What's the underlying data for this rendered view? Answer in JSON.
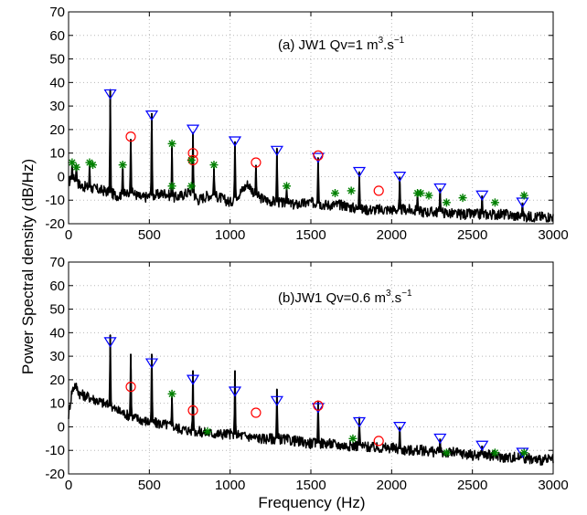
{
  "figure": {
    "ylabel": "Power Spectral density (dB/Hz)",
    "xlabel": "Frequency (Hz)"
  },
  "chart_data": [
    {
      "type": "line",
      "title": "(a) JW1 Qv=1 m³.s⁻¹",
      "title_main": "(a) JW1 Qv=1 m",
      "title_sup1": "3",
      "title_mid": ".s",
      "title_sup2": "−1",
      "xlim": [
        0,
        3000
      ],
      "ylim": [
        -20,
        70
      ],
      "xticks": [
        0,
        500,
        1000,
        1500,
        2000,
        2500,
        3000
      ],
      "yticks": [
        -20,
        -10,
        0,
        10,
        20,
        30,
        40,
        50,
        60,
        70
      ],
      "grid": true,
      "baseline": [
        [
          0,
          -2
        ],
        [
          30,
          -1
        ],
        [
          80,
          -4
        ],
        [
          150,
          -5
        ],
        [
          220,
          -6
        ],
        [
          300,
          -8
        ],
        [
          400,
          -7
        ],
        [
          450,
          -9
        ],
        [
          530,
          -8
        ],
        [
          600,
          -7
        ],
        [
          650,
          -9
        ],
        [
          700,
          -8
        ],
        [
          760,
          -6
        ],
        [
          800,
          -10
        ],
        [
          860,
          -8
        ],
        [
          900,
          -8
        ],
        [
          940,
          -9
        ],
        [
          1000,
          -11
        ],
        [
          1060,
          -7
        ],
        [
          1110,
          -3
        ],
        [
          1160,
          -8
        ],
        [
          1220,
          -10
        ],
        [
          1300,
          -11
        ],
        [
          1400,
          -12
        ],
        [
          1500,
          -11
        ],
        [
          1600,
          -12
        ],
        [
          1700,
          -12
        ],
        [
          1800,
          -14
        ],
        [
          1900,
          -14
        ],
        [
          2000,
          -14
        ],
        [
          2100,
          -14
        ],
        [
          2200,
          -15
        ],
        [
          2300,
          -15
        ],
        [
          2400,
          -16
        ],
        [
          2500,
          -16
        ],
        [
          2600,
          -16
        ],
        [
          2700,
          -16
        ],
        [
          2800,
          -17
        ],
        [
          2900,
          -17
        ],
        [
          3000,
          -17
        ]
      ],
      "peaks": [
        [
          22,
          5
        ],
        [
          48,
          5
        ],
        [
          130,
          5
        ],
        [
          258,
          37
        ],
        [
          335,
          4
        ],
        [
          385,
          16
        ],
        [
          515,
          27
        ],
        [
          640,
          13
        ],
        [
          770,
          19
        ],
        [
          900,
          4
        ],
        [
          1030,
          15
        ],
        [
          1160,
          5
        ],
        [
          1290,
          12
        ],
        [
          1350,
          -4
        ],
        [
          1545,
          8
        ],
        [
          1800,
          2
        ],
        [
          2050,
          0
        ],
        [
          2160,
          -7
        ],
        [
          2300,
          -5
        ],
        [
          2560,
          -8
        ],
        [
          2810,
          -11
        ]
      ],
      "harmonics_triangle": [
        [
          258,
          35
        ],
        [
          515,
          26
        ],
        [
          770,
          20
        ],
        [
          1030,
          15
        ],
        [
          1290,
          11
        ],
        [
          1545,
          8
        ],
        [
          1800,
          2
        ],
        [
          2050,
          0
        ],
        [
          2300,
          -5
        ],
        [
          2560,
          -8
        ],
        [
          2810,
          -11
        ]
      ],
      "markers_circle": [
        [
          385,
          17
        ],
        [
          770,
          10
        ],
        [
          770,
          7
        ],
        [
          1160,
          6
        ],
        [
          1545,
          9
        ],
        [
          1920,
          -6
        ]
      ],
      "markers_star": [
        [
          22,
          6
        ],
        [
          48,
          4
        ],
        [
          130,
          6
        ],
        [
          150,
          5
        ],
        [
          335,
          5
        ],
        [
          640,
          14
        ],
        [
          640,
          -4
        ],
        [
          760,
          7
        ],
        [
          760,
          -4
        ],
        [
          900,
          5
        ],
        [
          1350,
          -4
        ],
        [
          1650,
          -7
        ],
        [
          1750,
          -6
        ],
        [
          2160,
          -7
        ],
        [
          2180,
          -7
        ],
        [
          2230,
          -8
        ],
        [
          2340,
          -11
        ],
        [
          2440,
          -9
        ],
        [
          2640,
          -11
        ],
        [
          2820,
          -8
        ]
      ]
    },
    {
      "type": "line",
      "title": "(b)JW1 Qv=0.6 m³.s⁻¹",
      "title_main": "(b)JW1 Qv=0.6 m",
      "title_sup1": "3",
      "title_mid": ".s",
      "title_sup2": "−1",
      "xlim": [
        0,
        3000
      ],
      "ylim": [
        -20,
        70
      ],
      "xticks": [
        0,
        500,
        1000,
        1500,
        2000,
        2500,
        3000
      ],
      "yticks": [
        -20,
        -10,
        0,
        10,
        20,
        30,
        40,
        50,
        60,
        70
      ],
      "grid": true,
      "baseline": [
        [
          0,
          5
        ],
        [
          20,
          15
        ],
        [
          40,
          18
        ],
        [
          70,
          14
        ],
        [
          150,
          12
        ],
        [
          250,
          9
        ],
        [
          300,
          7
        ],
        [
          400,
          4
        ],
        [
          500,
          2
        ],
        [
          600,
          1
        ],
        [
          700,
          -1
        ],
        [
          800,
          -2
        ],
        [
          900,
          -3
        ],
        [
          1000,
          -3
        ],
        [
          1100,
          -4
        ],
        [
          1200,
          -5
        ],
        [
          1300,
          -5
        ],
        [
          1400,
          -6
        ],
        [
          1500,
          -7
        ],
        [
          1600,
          -7
        ],
        [
          1700,
          -8
        ],
        [
          1800,
          -8
        ],
        [
          1900,
          -9
        ],
        [
          2000,
          -9
        ],
        [
          2100,
          -10
        ],
        [
          2200,
          -10
        ],
        [
          2300,
          -11
        ],
        [
          2400,
          -11
        ],
        [
          2500,
          -12
        ],
        [
          2600,
          -12
        ],
        [
          2700,
          -13
        ],
        [
          2800,
          -13
        ],
        [
          2900,
          -14
        ],
        [
          3000,
          -14
        ]
      ],
      "peaks": [
        [
          258,
          39
        ],
        [
          385,
          31
        ],
        [
          515,
          31
        ],
        [
          640,
          13
        ],
        [
          770,
          24
        ],
        [
          1030,
          24
        ],
        [
          1290,
          16
        ],
        [
          1545,
          11
        ],
        [
          1800,
          4
        ],
        [
          2050,
          0
        ],
        [
          2300,
          -5
        ],
        [
          2560,
          -8
        ],
        [
          2810,
          -11
        ]
      ],
      "harmonics_triangle": [
        [
          258,
          36
        ],
        [
          515,
          27
        ],
        [
          770,
          20
        ],
        [
          1030,
          15
        ],
        [
          1290,
          11
        ],
        [
          1545,
          8
        ],
        [
          1800,
          2
        ],
        [
          2050,
          0
        ],
        [
          2300,
          -5
        ],
        [
          2560,
          -8
        ],
        [
          2810,
          -11
        ]
      ],
      "markers_circle": [
        [
          385,
          17
        ],
        [
          770,
          7
        ],
        [
          1160,
          6
        ],
        [
          1545,
          9
        ],
        [
          1920,
          -6
        ]
      ],
      "markers_star": [
        [
          640,
          14
        ],
        [
          860,
          -2
        ],
        [
          1760,
          -5
        ],
        [
          2340,
          -11
        ],
        [
          2640,
          -11
        ],
        [
          2820,
          -11
        ]
      ]
    }
  ]
}
